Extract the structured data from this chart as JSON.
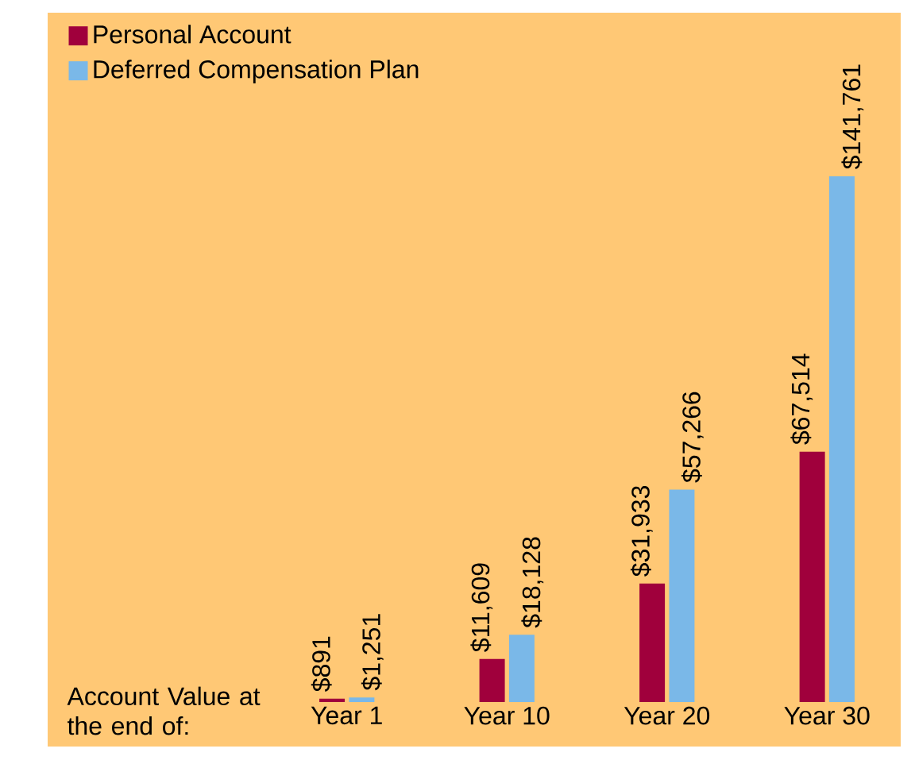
{
  "chart_data": {
    "type": "bar",
    "xlabel": "Account Value at the end of:",
    "categories": [
      "Year 1",
      "Year 10",
      "Year 20",
      "Year 30"
    ],
    "series": [
      {
        "name": "Personal Account",
        "color": "#a0003c",
        "values": [
          891,
          11609,
          31933,
          67514
        ],
        "value_labels": [
          "$891",
          "$11,609",
          "$31,933",
          "$67,514"
        ]
      },
      {
        "name": "Deferred Compensation Plan",
        "color": "#7ab8e8",
        "values": [
          1251,
          18128,
          57266,
          141761
        ],
        "value_labels": [
          "$1,251",
          "$18,128",
          "$57,266",
          "$141,761"
        ]
      }
    ],
    "ylim": [
      0,
      185000
    ],
    "legend": "top left"
  }
}
